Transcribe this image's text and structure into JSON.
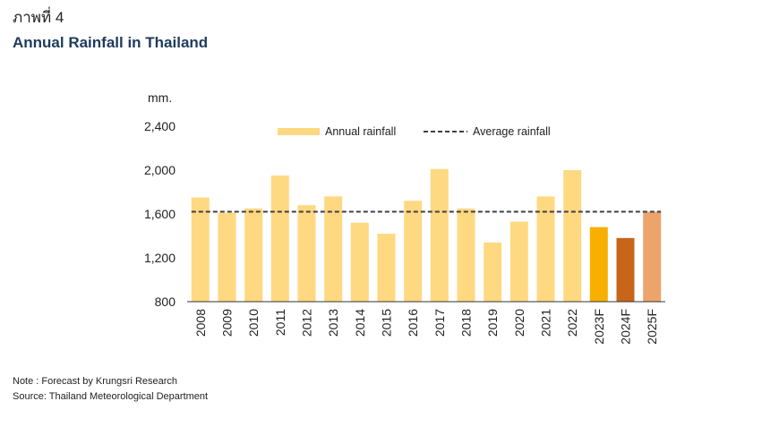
{
  "figure_label": "ภาพที่ 4",
  "title": "Annual Rainfall in Thailand",
  "notes": {
    "note": "Note : Forecast by Krungsri Research",
    "source": "Source: Thailand Meteorological Department"
  },
  "colors": {
    "actual": "#ffd882",
    "forecast_2023": "#f7b000",
    "forecast_2024": "#c8651b",
    "forecast_2025": "#eda46a",
    "average_line": "#404040",
    "axis": "#333333"
  },
  "chart_data": {
    "type": "bar",
    "title": "Annual Rainfall in Thailand",
    "ylabel": "mm.",
    "ylim": [
      800,
      2400
    ],
    "yticks": [
      800,
      1200,
      1600,
      2000,
      2400
    ],
    "ytick_labels": [
      "800",
      "1,200",
      "1,600",
      "2,000",
      "2,400"
    ],
    "grid": false,
    "legend_position": "top-center",
    "categories": [
      "2008",
      "2009",
      "2010",
      "2011",
      "2012",
      "2013",
      "2014",
      "2015",
      "2016",
      "2017",
      "2018",
      "2019",
      "2020",
      "2021",
      "2022",
      "2023F",
      "2024F",
      "2025F"
    ],
    "series": [
      {
        "name": "Annual rainfall",
        "type": "bar",
        "values": [
          1750,
          1610,
          1650,
          1950,
          1680,
          1760,
          1520,
          1420,
          1720,
          2010,
          1650,
          1340,
          1530,
          1760,
          2000,
          1480,
          1380,
          1620
        ]
      },
      {
        "name": "Average rainfall",
        "type": "line",
        "style": "dashed",
        "value": 1620
      }
    ]
  }
}
